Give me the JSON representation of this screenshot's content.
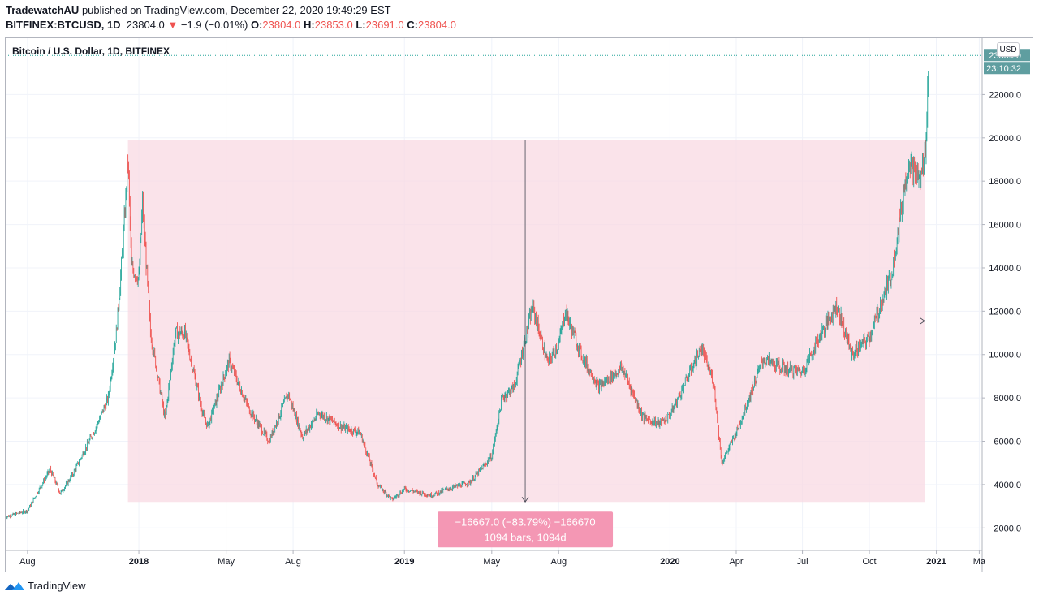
{
  "header": {
    "author": "TradewatchAU",
    "published_text": "published on TradingView.com, December 22, 2020 19:49:29 EST",
    "symbol": "BITFINEX:BTCUSD, 1D",
    "last": "23804.0",
    "change_arrow": "▼",
    "change": "−1.9 (−0.01%)",
    "o_label": "O:",
    "o_value": "23804.0",
    "h_label": "H:",
    "h_value": "23853.0",
    "l_label": "L:",
    "l_value": "23691.0",
    "c_label": "C:",
    "c_value": "23804.0"
  },
  "currency_button": "USD",
  "footer": {
    "brand": "TradingView"
  },
  "chart_data": {
    "type": "candlestick",
    "title": "Bitcoin / U.S. Dollar, 1D, BITFINEX",
    "ylim": [
      1000,
      24600
    ],
    "y_ticks": [
      "2000.0",
      "4000.0",
      "6000.0",
      "8000.0",
      "10000.0",
      "12000.0",
      "14000.0",
      "16000.0",
      "18000.0",
      "20000.0",
      "22000.0"
    ],
    "y_tick_values": [
      2000,
      4000,
      6000,
      8000,
      10000,
      12000,
      14000,
      16000,
      18000,
      20000,
      22000
    ],
    "x_ticks": [
      {
        "label": "Aug",
        "date": "2017-08-01",
        "bold": false
      },
      {
        "label": "2018",
        "date": "2018-01-01",
        "bold": true
      },
      {
        "label": "May",
        "date": "2018-05-01",
        "bold": false
      },
      {
        "label": "Aug",
        "date": "2018-08-01",
        "bold": false
      },
      {
        "label": "2019",
        "date": "2019-01-01",
        "bold": true
      },
      {
        "label": "May",
        "date": "2019-05-01",
        "bold": false
      },
      {
        "label": "Aug",
        "date": "2019-08-01",
        "bold": false
      },
      {
        "label": "2020",
        "date": "2020-01-01",
        "bold": true
      },
      {
        "label": "Apr",
        "date": "2020-04-01",
        "bold": false
      },
      {
        "label": "Jul",
        "date": "2020-07-01",
        "bold": false
      },
      {
        "label": "Oct",
        "date": "2020-10-01",
        "bold": false
      },
      {
        "label": "2021",
        "date": "2021-01-01",
        "bold": true
      },
      {
        "label": "Ma",
        "date": "2021-03-01",
        "bold": false
      }
    ],
    "x_range": [
      "2017-07-02",
      "2021-03-05"
    ],
    "series": [
      {
        "x": [
          "2017-07-01",
          "2017-08-01",
          "2017-09-01",
          "2017-09-15",
          "2017-10-01",
          "2017-11-01",
          "2017-11-20",
          "2017-12-01",
          "2017-12-10",
          "2017-12-17",
          "2017-12-22",
          "2018-01-01",
          "2018-01-06",
          "2018-01-17",
          "2018-02-06",
          "2018-02-20",
          "2018-03-05",
          "2018-04-01",
          "2018-04-06",
          "2018-05-05",
          "2018-06-01",
          "2018-06-29",
          "2018-07-25",
          "2018-08-14",
          "2018-09-05",
          "2018-10-10",
          "2018-11-01",
          "2018-11-25",
          "2018-12-15",
          "2019-01-01",
          "2019-02-07",
          "2019-03-01",
          "2019-04-01",
          "2019-05-01",
          "2019-05-15",
          "2019-06-01",
          "2019-06-26",
          "2019-07-17",
          "2019-08-01",
          "2019-08-10",
          "2019-09-01",
          "2019-09-25",
          "2019-10-27",
          "2019-11-25",
          "2019-12-18",
          "2020-01-01",
          "2020-02-13",
          "2020-03-01",
          "2020-03-12",
          "2020-04-01",
          "2020-05-08",
          "2020-06-01",
          "2020-07-01",
          "2020-07-27",
          "2020-08-17",
          "2020-09-07",
          "2020-10-01",
          "2020-10-21",
          "2020-11-01",
          "2020-11-24",
          "2020-12-01",
          "2020-12-10",
          "2020-12-17",
          "2020-12-22"
        ],
        "y": [
          2500,
          2800,
          4700,
          3600,
          4400,
          6500,
          8000,
          11000,
          15000,
          19000,
          14000,
          13500,
          17000,
          11000,
          7000,
          11000,
          11000,
          7000,
          6700,
          9700,
          7500,
          6000,
          8200,
          6200,
          7300,
          6600,
          6400,
          4000,
          3300,
          3800,
          3500,
          3800,
          4100,
          5300,
          8000,
          8500,
          12200,
          9600,
          10500,
          12000,
          10000,
          8500,
          9400,
          7100,
          6800,
          7200,
          10300,
          8700,
          5000,
          6400,
          9800,
          9400,
          9200,
          11000,
          12300,
          10000,
          10800,
          12700,
          13800,
          19000,
          18500,
          18000,
          19500,
          23804
        ]
      }
    ],
    "drawing": {
      "rectangle_price_range": [
        3200,
        19900
      ],
      "rectangle_date_range": [
        "2017-12-17",
        "2020-12-16"
      ],
      "horizontal_arrow_price": 11550,
      "vertical_arrow_date": "2019-06-16",
      "measure_text_1": "−16667.0 (−83.79%) −166670",
      "measure_text_2": "1094 bars, 1094d"
    },
    "last_price_label": "23804.0",
    "countdown_label": "23:10:32"
  }
}
